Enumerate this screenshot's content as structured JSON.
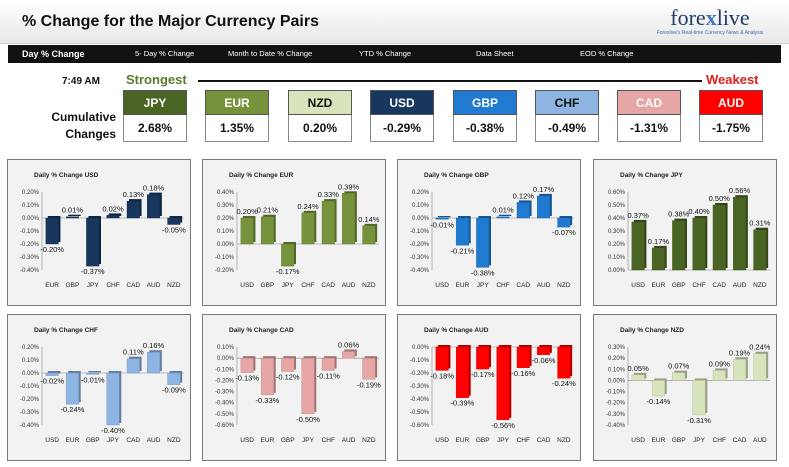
{
  "header": {
    "title": "% Change for the Major Currency Pairs",
    "logo_main_1": "fore",
    "logo_main_x": "x",
    "logo_main_2": "live",
    "logo_sub": "Forexlive's Real-time Currency News & Analysis"
  },
  "tabs": [
    "Day % Change",
    "5- Day % Change",
    "Month to Date % Change",
    "YTD % Change",
    "Data Sheet",
    "EOD % Change"
  ],
  "time": "7:49 AM",
  "strongest_label": "Strongest",
  "weakest_label": "Weakest",
  "cumulative_label_1": "Cumulative",
  "cumulative_label_2": "Changes",
  "currencies": [
    {
      "name": "JPY",
      "value": "2.68%",
      "bg": "#4a6424",
      "fg": "#ffffff"
    },
    {
      "name": "EUR",
      "value": "1.35%",
      "bg": "#76933c",
      "fg": "#ffffff"
    },
    {
      "name": "NZD",
      "value": "0.20%",
      "bg": "#d7e4bc",
      "fg": "#111111"
    },
    {
      "name": "USD",
      "value": "-0.29%",
      "bg": "#17375e",
      "fg": "#ffffff"
    },
    {
      "name": "GBP",
      "value": "-0.38%",
      "bg": "#1f7ad0",
      "fg": "#ffffff"
    },
    {
      "name": "CHF",
      "value": "-0.49%",
      "bg": "#8db4e2",
      "fg": "#111111"
    },
    {
      "name": "CAD",
      "value": "-1.31%",
      "bg": "#e6a6a6",
      "fg": "#ffffff"
    },
    {
      "name": "AUD",
      "value": "-1.75%",
      "bg": "#ff0000",
      "fg": "#ffffff"
    }
  ],
  "chart_data": [
    {
      "type": "bar",
      "title": "Daily % Change USD",
      "color": "#17375e",
      "categories": [
        "EUR",
        "GBP",
        "JPY",
        "CHF",
        "CAD",
        "AUD",
        "NZD"
      ],
      "values": [
        -0.2,
        0.01,
        -0.37,
        0.02,
        0.13,
        0.18,
        -0.05
      ],
      "labels": [
        "-0.20%",
        "0.01%",
        "-0.37%",
        "0.02%",
        "0.13%",
        "0.18%",
        "-0.05%"
      ],
      "ticks": [
        "0.20%",
        "0.10%",
        "0.00%",
        "-0.10%",
        "-0.20%",
        "-0.30%",
        "-0.40%"
      ],
      "ylim": [
        -0.4,
        0.2
      ],
      "step": 0.1
    },
    {
      "type": "bar",
      "title": "Daily % Change EUR",
      "color": "#76933c",
      "categories": [
        "USD",
        "GBP",
        "JPY",
        "CHF",
        "CAD",
        "AUD",
        "NZD"
      ],
      "values": [
        0.2,
        0.21,
        -0.17,
        0.24,
        0.33,
        0.39,
        0.14
      ],
      "labels": [
        "0.20%",
        "0.21%",
        "-0.17%",
        "0.24%",
        "0.33%",
        "0.39%",
        "0.14%"
      ],
      "ticks": [
        "0.40%",
        "0.30%",
        "0.20%",
        "0.10%",
        "0.00%",
        "-0.10%",
        "-0.20%"
      ],
      "ylim": [
        -0.2,
        0.4
      ],
      "step": 0.1
    },
    {
      "type": "bar",
      "title": "Daily % Change GBP",
      "color": "#1f7ad0",
      "categories": [
        "USD",
        "EUR",
        "JPY",
        "CHF",
        "CAD",
        "AUD",
        "NZD"
      ],
      "values": [
        -0.01,
        -0.21,
        -0.38,
        0.01,
        0.12,
        0.17,
        -0.07
      ],
      "labels": [
        "-0.01%",
        "-0.21%",
        "-0.38%",
        "0.01%",
        "0.12%",
        "0.17%",
        "-0.07%"
      ],
      "ticks": [
        "0.20%",
        "0.10%",
        "0.00%",
        "-0.10%",
        "-0.20%",
        "-0.30%",
        "-0.40%"
      ],
      "ylim": [
        -0.4,
        0.2
      ],
      "step": 0.1
    },
    {
      "type": "bar",
      "title": "Daily % Change JPY",
      "color": "#4a6424",
      "categories": [
        "USD",
        "EUR",
        "GBP",
        "CHF",
        "CAD",
        "AUD",
        "NZD"
      ],
      "values": [
        0.37,
        0.17,
        0.38,
        0.4,
        0.5,
        0.56,
        0.31
      ],
      "labels": [
        "0.37%",
        "0.17%",
        "0.38%",
        "0.40%",
        "0.50%",
        "0.56%",
        "0.31%"
      ],
      "ticks": [
        "0.60%",
        "0.50%",
        "0.40%",
        "0.30%",
        "0.20%",
        "0.10%",
        "0.00%"
      ],
      "ylim": [
        0.0,
        0.6
      ],
      "step": 0.1
    },
    {
      "type": "bar",
      "title": "Daily % Change CHF",
      "color": "#8db4e2",
      "categories": [
        "USD",
        "EUR",
        "GBP",
        "JPY",
        "CAD",
        "AUD",
        "NZD"
      ],
      "values": [
        -0.02,
        -0.24,
        -0.01,
        -0.4,
        0.11,
        0.16,
        -0.09
      ],
      "labels": [
        "-0.02%",
        "-0.24%",
        "-0.01%",
        "-0.40%",
        "0.11%",
        "0.16%",
        "-0.09%"
      ],
      "ticks": [
        "0.20%",
        "0.10%",
        "0.00%",
        "-0.10%",
        "-0.20%",
        "-0.30%",
        "-0.40%"
      ],
      "ylim": [
        -0.4,
        0.2
      ],
      "step": 0.1
    },
    {
      "type": "bar",
      "title": "Daily % Change CAD",
      "color": "#e6a6a6",
      "categories": [
        "USD",
        "EUR",
        "GBP",
        "JPY",
        "CHF",
        "AUD",
        "NZD"
      ],
      "values": [
        -0.13,
        -0.33,
        -0.12,
        -0.5,
        -0.11,
        0.06,
        -0.19
      ],
      "labels": [
        "-0.13%",
        "-0.33%",
        "-0.12%",
        "-0.50%",
        "-0.11%",
        "0.06%",
        "-0.19%"
      ],
      "ticks": [
        "0.10%",
        "0.00%",
        "-0.10%",
        "-0.20%",
        "-0.30%",
        "-0.40%",
        "-0.50%",
        "-0.60%"
      ],
      "ylim": [
        -0.6,
        0.1
      ],
      "step": 0.1
    },
    {
      "type": "bar",
      "title": "Daily % Change AUD",
      "color": "#ff0000",
      "categories": [
        "USD",
        "EUR",
        "GBP",
        "JPY",
        "CHF",
        "CAD",
        "NZD"
      ],
      "values": [
        -0.18,
        -0.39,
        -0.17,
        -0.56,
        -0.16,
        -0.06,
        -0.24
      ],
      "labels": [
        "-0.18%",
        "-0.39%",
        "-0.17%",
        "-0.56%",
        "-0.16%",
        "-0.06%",
        "-0.24%"
      ],
      "ticks": [
        "0.00%",
        "-0.10%",
        "-0.20%",
        "-0.30%",
        "-0.40%",
        "-0.50%",
        "-0.60%"
      ],
      "ylim": [
        -0.6,
        0.0
      ],
      "step": 0.1
    },
    {
      "type": "bar",
      "title": "Daily % Change NZD",
      "color": "#d7e4bc",
      "categories": [
        "USD",
        "EUR",
        "GBP",
        "JPY",
        "CHF",
        "CAD",
        "AUD"
      ],
      "values": [
        0.05,
        -0.14,
        0.07,
        -0.31,
        0.09,
        0.19,
        0.24
      ],
      "labels": [
        "0.05%",
        "-0.14%",
        "0.07%",
        "-0.31%",
        "0.09%",
        "0.19%",
        "0.24%"
      ],
      "ticks": [
        "0.30%",
        "0.20%",
        "0.10%",
        "0.00%",
        "-0.10%",
        "-0.20%",
        "-0.30%",
        "-0.40%"
      ],
      "ylim": [
        -0.4,
        0.3
      ],
      "step": 0.1
    }
  ]
}
